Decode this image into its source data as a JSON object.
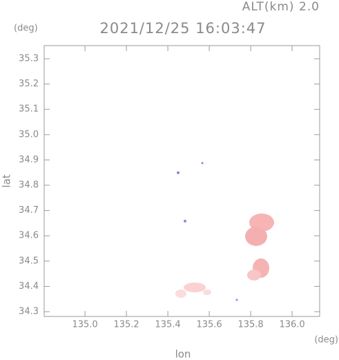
{
  "chart_data": {
    "type": "map",
    "title": "2021/12/25 16:03:47",
    "subtitle": "ALT(km) 2.0",
    "y_unit": "(deg)",
    "x_unit": "(deg)",
    "x_label": "lon",
    "y_label": "lat",
    "xlim": [
      134.803,
      136.133
    ],
    "ylim": [
      34.281,
      35.352
    ],
    "xticks": [
      {
        "value": 135,
        "label": "135.0"
      },
      135.2,
      135.4,
      135.6,
      135.8,
      {
        "value": 136,
        "label": "136.0"
      }
    ],
    "yticks": [
      35.3,
      35.2,
      35.1,
      {
        "value": 35,
        "label": "35.0"
      },
      34.9,
      34.8,
      34.7,
      34.6,
      34.5,
      34.4,
      34.3
    ]
  }
}
